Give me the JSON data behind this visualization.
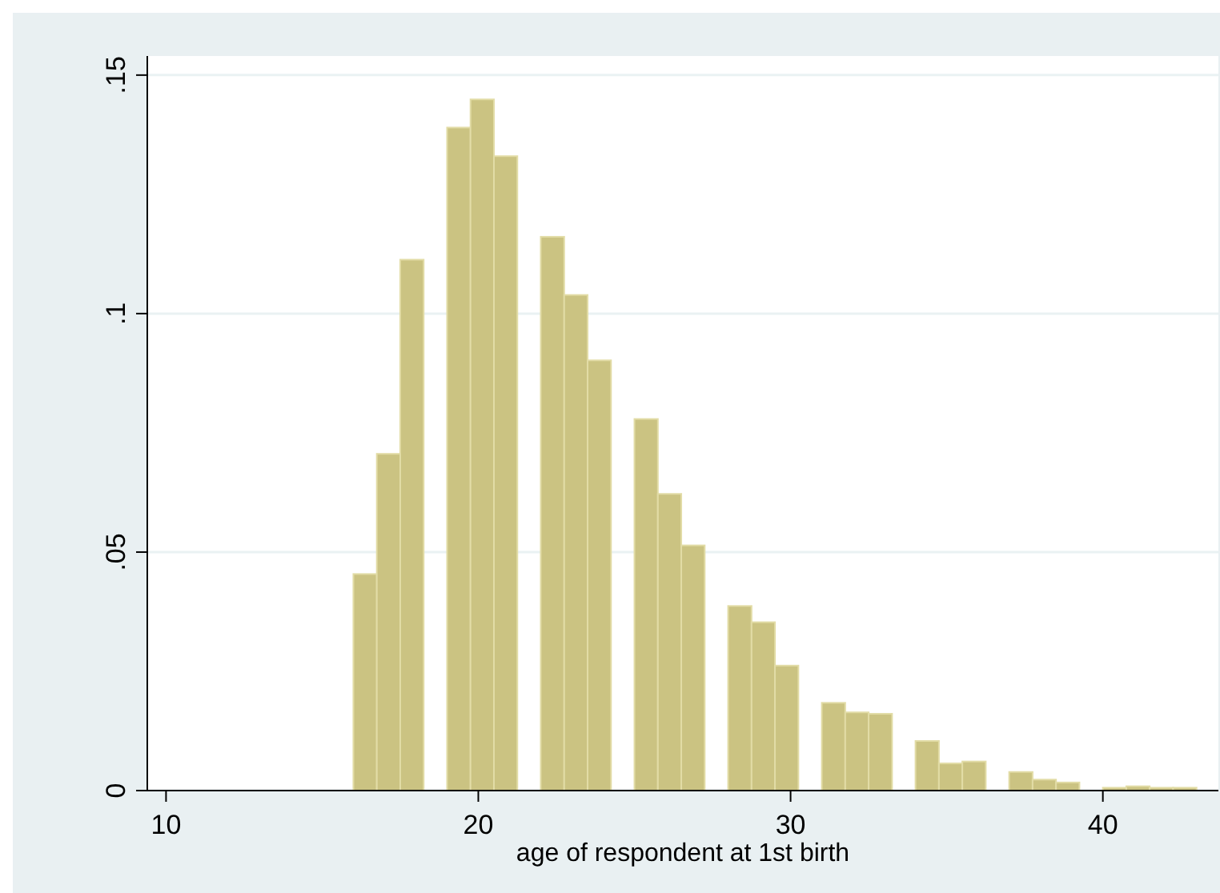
{
  "chart_data": {
    "type": "histogram",
    "xlabel": "age of respondent at 1st birth",
    "bins": [
      16,
      16.75,
      17.5,
      18.25,
      19,
      19.75,
      20.5,
      21.25,
      22,
      22.75,
      23.5,
      24.25,
      25,
      25.75,
      26.5,
      27.25,
      28,
      28.75,
      29.5,
      30.25,
      31,
      31.75,
      32.5,
      33.25,
      34,
      34.75,
      35.5,
      36.25,
      37,
      37.75,
      38.5,
      39.25,
      40,
      40.75,
      41.5,
      42.25,
      43
    ],
    "values": [
      0.0454,
      0.0706,
      0.1113,
      0,
      0.139,
      0.1449,
      0.133,
      0,
      0.1161,
      0.1039,
      0.0902,
      0,
      0.0779,
      0.0622,
      0.0514,
      0,
      0.0387,
      0.0353,
      0.0262,
      0,
      0.0184,
      0.0164,
      0.0161,
      0,
      0.0104,
      0.0057,
      0.0061,
      0,
      0.0039,
      0.0023,
      0.0017,
      0,
      0.0006,
      0.0009,
      0.0006,
      0.0006
    ],
    "color": "#cbc382",
    "xlim": [
      9.4,
      43.7
    ],
    "xticks": [
      10,
      20,
      30,
      40
    ],
    "ylim": [
      0,
      0.154
    ],
    "yticks": [
      {
        "value": 0,
        "label": "0"
      },
      {
        "value": 0.05,
        "label": ".05"
      },
      {
        "value": 0.1,
        "label": ".1"
      },
      {
        "value": 0.15,
        "label": ".15"
      }
    ],
    "grid": "y"
  }
}
